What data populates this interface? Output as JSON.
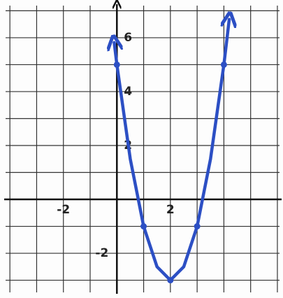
{
  "chart_data": {
    "type": "line",
    "x": [
      -0.1,
      0,
      0.5,
      1,
      1.5,
      2,
      2.5,
      3,
      3.5,
      4,
      4.2
    ],
    "series": [
      {
        "color": "#2c4fc4",
        "values": [
          5.82,
          5,
          1.5,
          -1,
          -2.5,
          -3,
          -2.5,
          -1,
          1.5,
          5,
          6.68
        ]
      }
    ],
    "points": [
      [
        0,
        5
      ],
      [
        1,
        -1
      ],
      [
        2,
        -3
      ],
      [
        3,
        -1
      ],
      [
        4,
        5
      ]
    ],
    "xlim": [
      -4.37,
      6.21
    ],
    "ylim": [
      -3.66,
      7.4
    ],
    "xticks": [
      -2,
      2
    ],
    "yticks": [
      -2,
      2,
      4,
      6
    ],
    "xgrid": [
      -4,
      -3,
      -2,
      -1,
      1,
      2,
      3,
      4,
      5,
      6
    ],
    "ygrid": [
      -3,
      -2,
      -1,
      1,
      2,
      3,
      4,
      5,
      6,
      7
    ],
    "grid": true
  }
}
